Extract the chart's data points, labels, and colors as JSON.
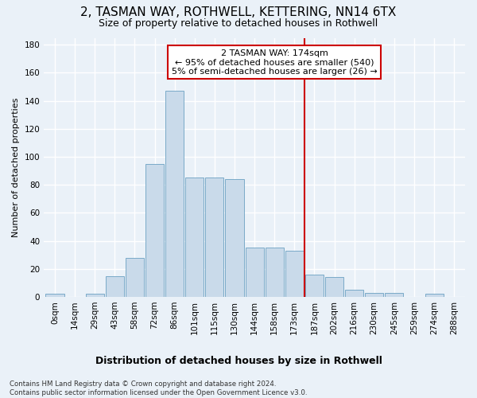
{
  "title": "2, TASMAN WAY, ROTHWELL, KETTERING, NN14 6TX",
  "subtitle": "Size of property relative to detached houses in Rothwell",
  "xlabel": "Distribution of detached houses by size in Rothwell",
  "ylabel": "Number of detached properties",
  "footer_line1": "Contains HM Land Registry data © Crown copyright and database right 2024.",
  "footer_line2": "Contains public sector information licensed under the Open Government Licence v3.0.",
  "bar_labels": [
    "0sqm",
    "14sqm",
    "29sqm",
    "43sqm",
    "58sqm",
    "72sqm",
    "86sqm",
    "101sqm",
    "115sqm",
    "130sqm",
    "144sqm",
    "158sqm",
    "173sqm",
    "187sqm",
    "202sqm",
    "216sqm",
    "230sqm",
    "245sqm",
    "259sqm",
    "274sqm",
    "288sqm"
  ],
  "bar_values": [
    2,
    0,
    2,
    15,
    28,
    95,
    147,
    85,
    85,
    84,
    35,
    35,
    33,
    16,
    14,
    5,
    3,
    3,
    0,
    2,
    0
  ],
  "bar_color": "#c9daea",
  "bar_edge_color": "#7aaac8",
  "vline_x": 12.5,
  "vline_color": "#cc0000",
  "bg_color": "#eaf1f8",
  "grid_color": "#ffffff",
  "annotation_text": "2 TASMAN WAY: 174sqm\n← 95% of detached houses are smaller (540)\n5% of semi-detached houses are larger (26) →",
  "annotation_box_facecolor": "#ffffff",
  "annotation_box_edgecolor": "#cc0000",
  "ylim": [
    0,
    185
  ],
  "yticks": [
    0,
    20,
    40,
    60,
    80,
    100,
    120,
    140,
    160,
    180
  ],
  "title_fontsize": 11,
  "subtitle_fontsize": 9,
  "ylabel_fontsize": 8,
  "xlabel_fontsize": 9,
  "tick_fontsize": 7.5,
  "annot_fontsize": 8
}
